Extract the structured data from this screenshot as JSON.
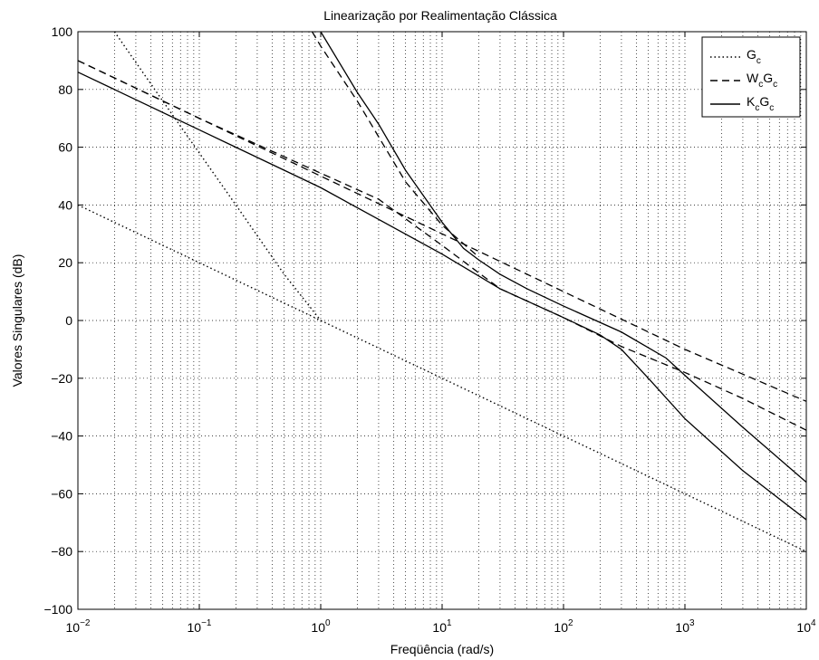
{
  "chart_data": {
    "type": "line",
    "title": "Linearização por Realimentação Clássica",
    "xlabel": "Freqüência (rad/s)",
    "ylabel": "Valores Singulares (dB)",
    "xscale": "log",
    "xlim": [
      0.01,
      10000
    ],
    "ylim": [
      -100,
      100
    ],
    "grid": true,
    "legend_position": "top-right",
    "x_ticks": [
      {
        "value": 0.01,
        "base": "10",
        "exp": "−2"
      },
      {
        "value": 0.1,
        "base": "10",
        "exp": "−1"
      },
      {
        "value": 1,
        "base": "10",
        "exp": "0"
      },
      {
        "value": 10,
        "base": "10",
        "exp": "1"
      },
      {
        "value": 100,
        "base": "10",
        "exp": "2"
      },
      {
        "value": 1000,
        "base": "10",
        "exp": "3"
      },
      {
        "value": 10000,
        "base": "10",
        "exp": "4"
      }
    ],
    "y_ticks": [
      "−100",
      "−80",
      "−60",
      "−40",
      "−20",
      "0",
      "20",
      "40",
      "60",
      "80",
      "100"
    ],
    "legend": [
      {
        "base": "G",
        "sub1": "c",
        "mid": "",
        "sub2": "",
        "style": "dotted"
      },
      {
        "base": "W",
        "sub1": "c",
        "mid": "G",
        "sub2": "c",
        "style": "dashed"
      },
      {
        "base": "K",
        "sub1": "c",
        "mid": "G",
        "sub2": "c",
        "style": "solid"
      }
    ],
    "series": [
      {
        "legend_index": 0,
        "style": "dotted",
        "x": [
          0.01,
          0.1,
          1,
          10,
          100,
          1000,
          10000
        ],
        "y": [
          40,
          20,
          0,
          -20,
          -40,
          -60,
          -80
        ]
      },
      {
        "legend_index": 0,
        "style": "dotted",
        "x": [
          0.02,
          0.05,
          0.1,
          0.2,
          0.5,
          1
        ],
        "y": [
          100,
          76,
          58,
          40,
          16,
          0
        ]
      },
      {
        "legend_index": 1,
        "style": "dashed",
        "x": [
          0.01,
          0.1,
          1,
          10,
          100,
          1000,
          10000
        ],
        "y": [
          90,
          70,
          50,
          30,
          10,
          -10,
          -28
        ]
      },
      {
        "legend_index": 1,
        "style": "dashed",
        "x": [
          0.01,
          0.1,
          1,
          3,
          10,
          30,
          100,
          300,
          1000,
          3000,
          10000
        ],
        "y": [
          90,
          70,
          51,
          42,
          26,
          11,
          1,
          -9,
          -18,
          -27,
          -38
        ]
      },
      {
        "legend_index": 1,
        "style": "dashed",
        "x": [
          0.85,
          1,
          2,
          5,
          10,
          20
        ],
        "y": [
          100,
          95,
          76,
          48,
          33,
          22
        ]
      },
      {
        "legend_index": 2,
        "style": "solid",
        "x": [
          0.01,
          0.1,
          1,
          3,
          10,
          30,
          100,
          200,
          300,
          500,
          1000,
          3000,
          10000
        ],
        "y": [
          86,
          66,
          46,
          35,
          23,
          11,
          1,
          -5,
          -10,
          -20,
          -34,
          -52,
          -69
        ]
      },
      {
        "legend_index": 2,
        "style": "solid",
        "x": [
          1,
          2,
          3,
          5,
          10,
          15,
          20,
          30,
          50,
          100,
          300,
          700,
          1000,
          3000,
          10000
        ],
        "y": [
          100,
          79,
          68,
          52,
          34,
          25,
          21,
          16,
          11,
          5,
          -4,
          -13,
          -19,
          -37,
          -56
        ]
      }
    ]
  }
}
